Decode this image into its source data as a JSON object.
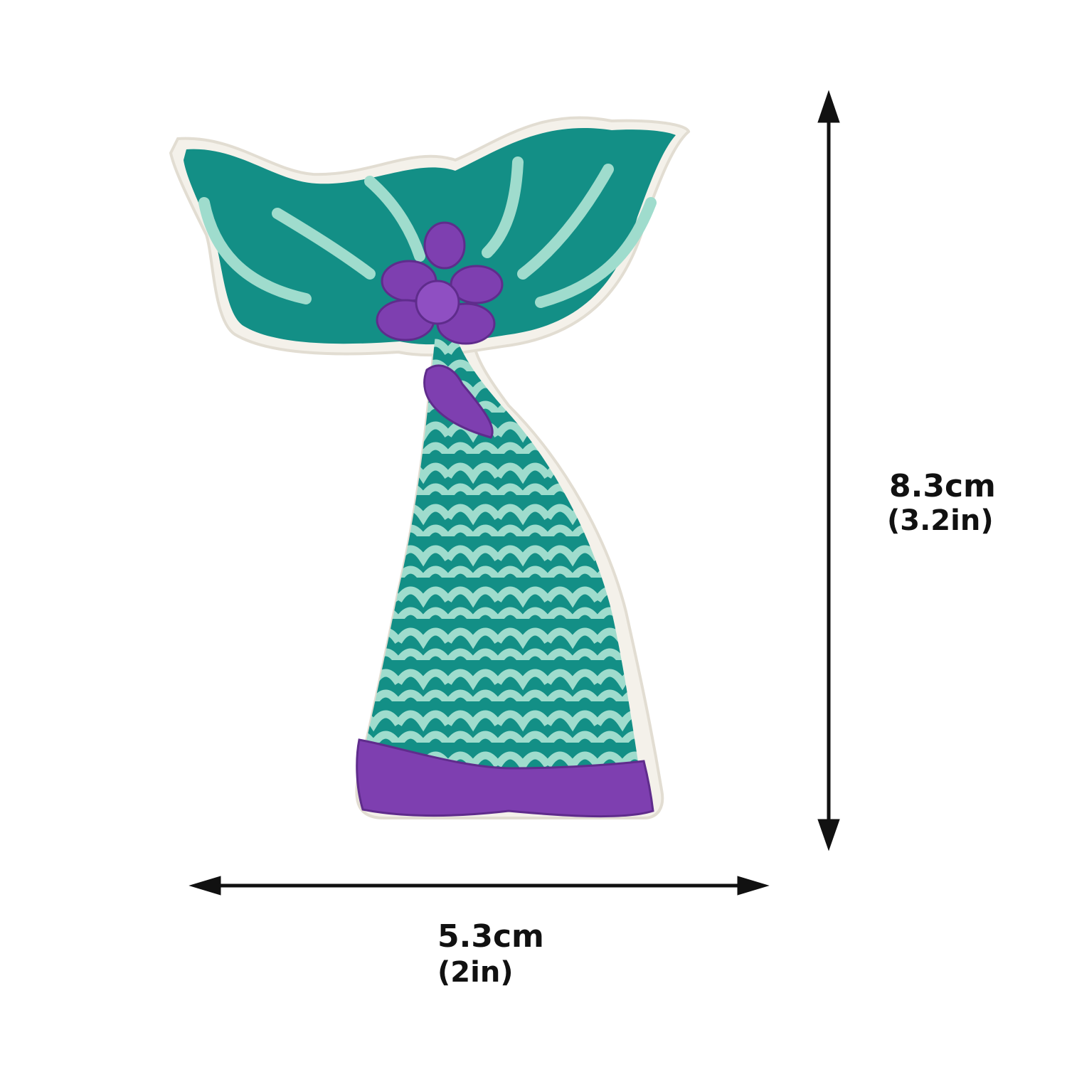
{
  "dimensions": {
    "width_cm": "5.3cm",
    "width_in": "(2in)",
    "height_cm": "8.3cm",
    "height_in": "(3.2in)"
  },
  "colors": {
    "background": "#ffffff",
    "patch_teal": "#138f86",
    "scale_light": "#9fdccd",
    "accent_purple": "#7e3fb0",
    "border_white": "#f4f1ea",
    "arrow": "#111111"
  },
  "subject": "mermaid-tail-embroidered-patch"
}
